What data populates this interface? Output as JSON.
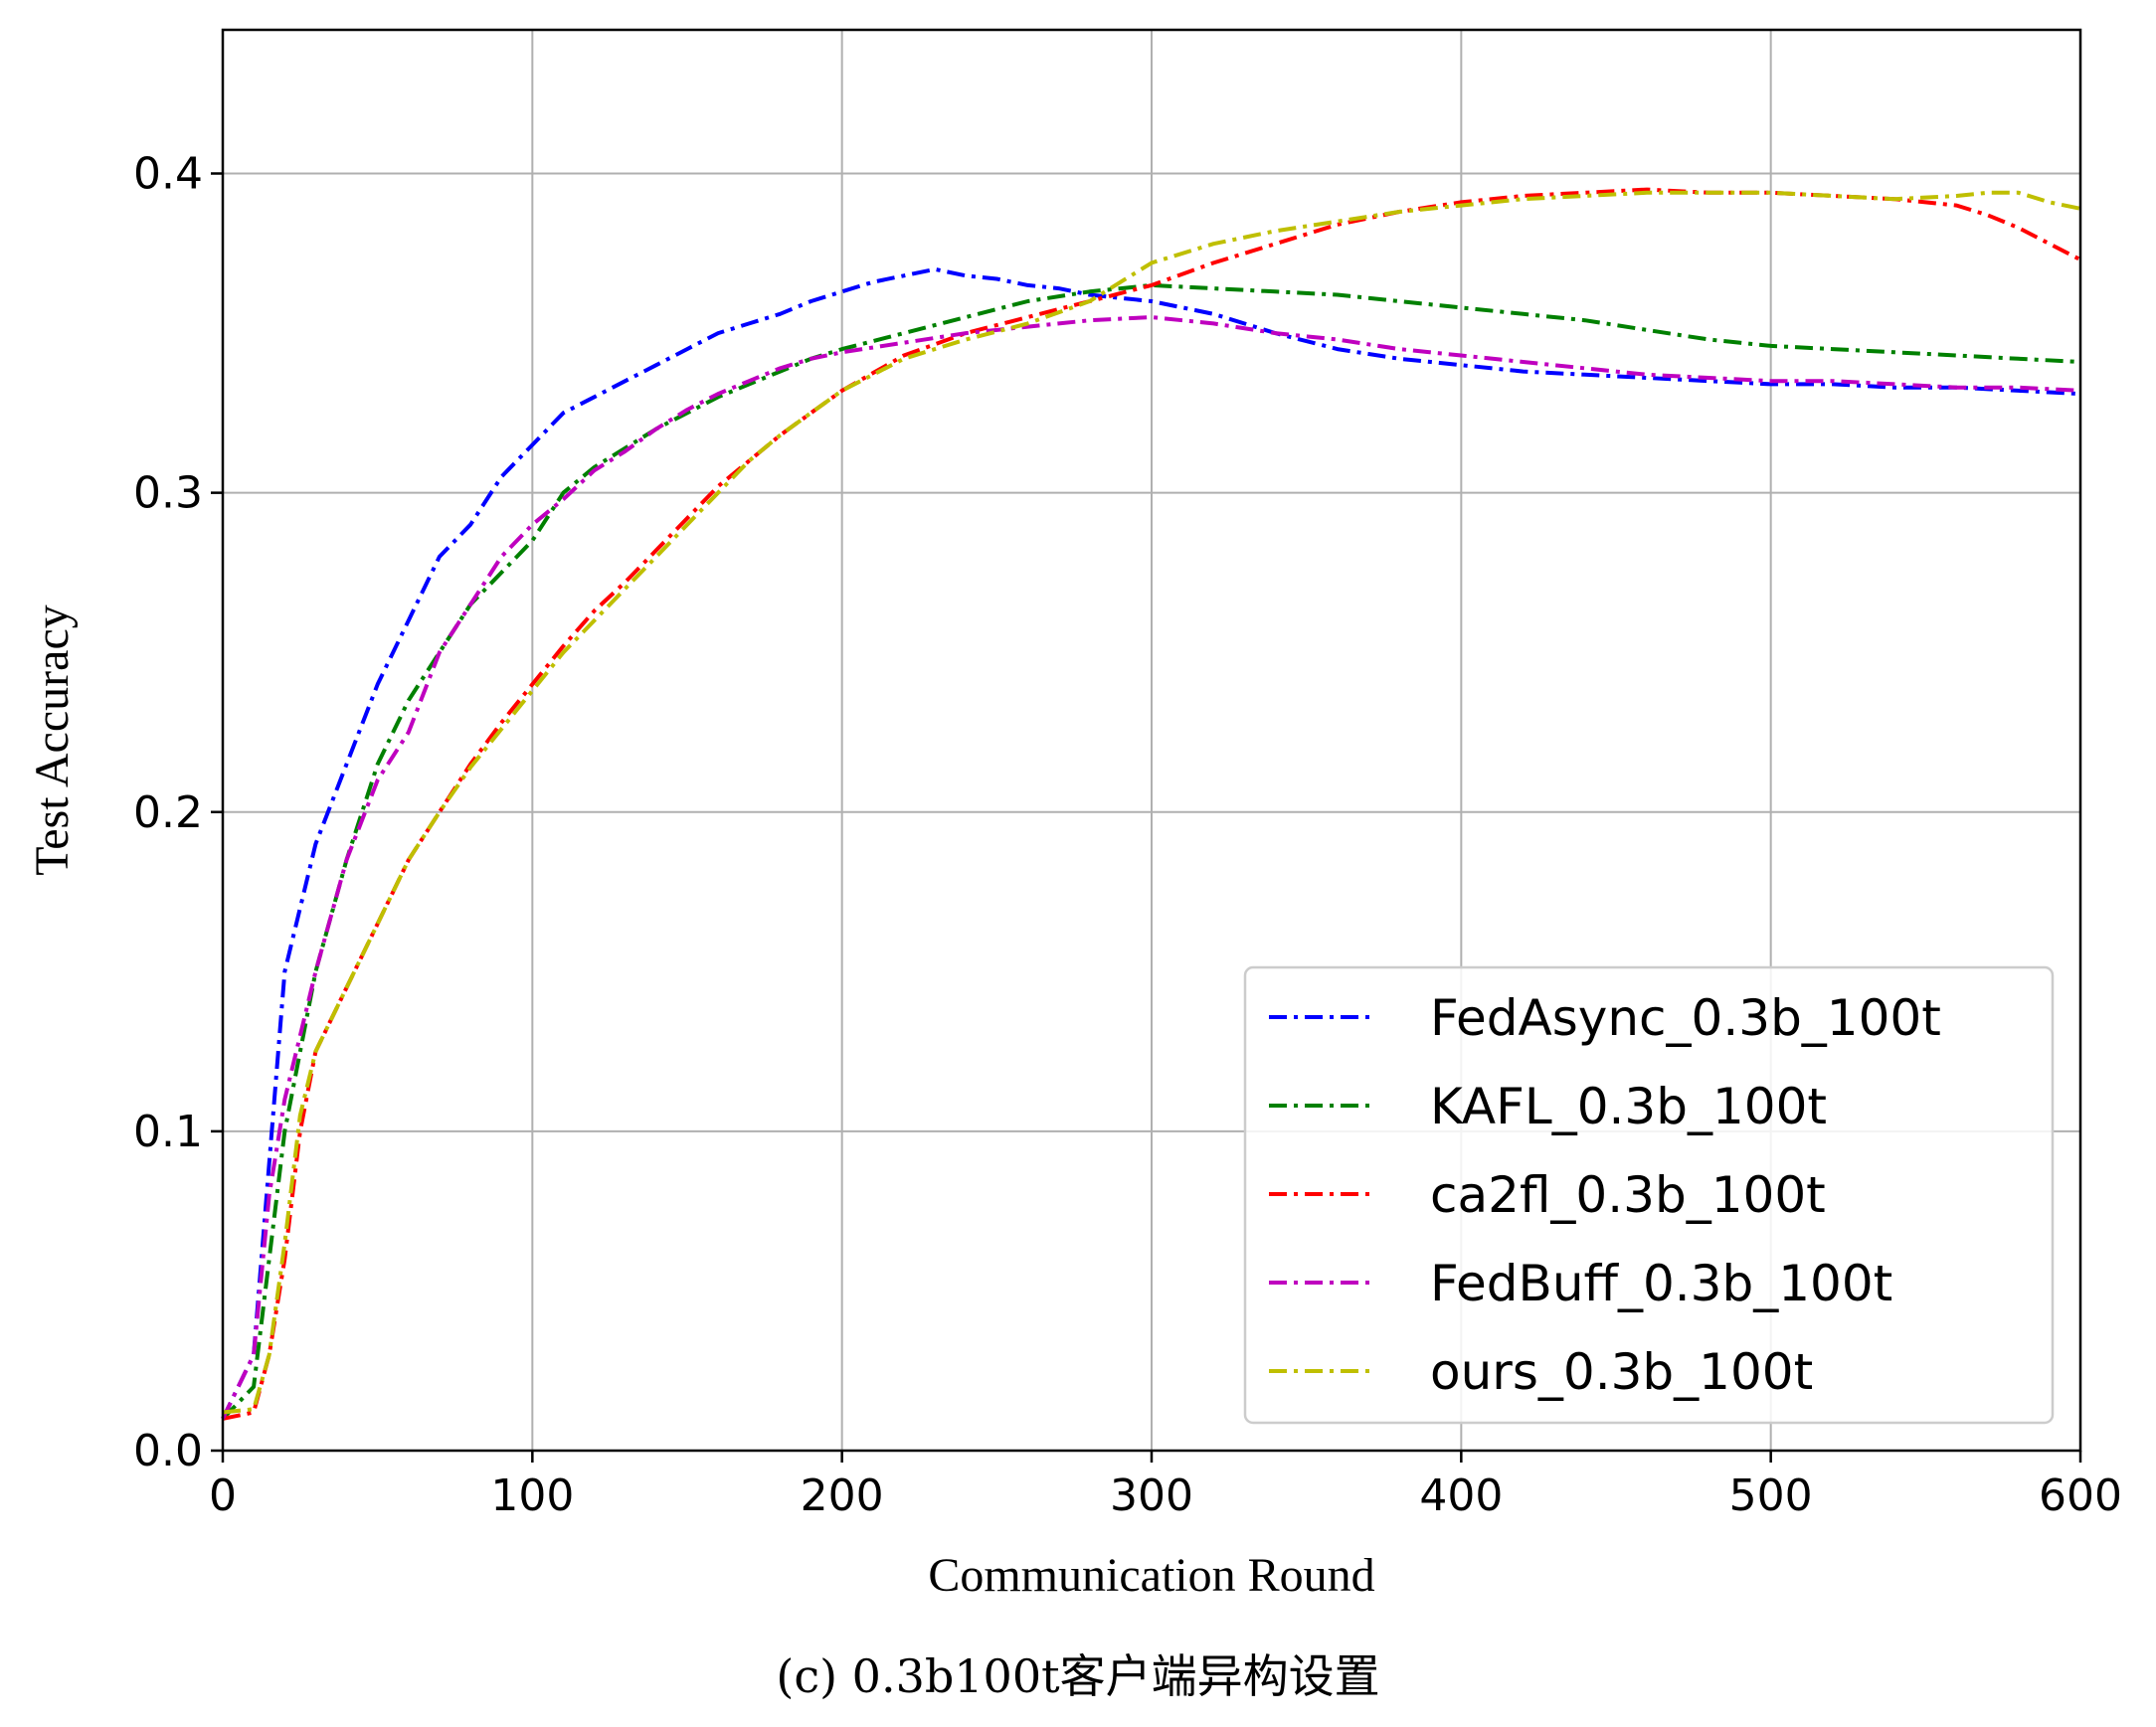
{
  "chart_data": {
    "type": "line",
    "xlabel": "Communication Round",
    "ylabel": "Test Accuracy",
    "xlim": [
      0,
      600
    ],
    "ylim": [
      0,
      0.445
    ],
    "xticks": [
      0,
      100,
      200,
      300,
      400,
      500,
      600
    ],
    "xtick_labels": [
      "0",
      "100",
      "200",
      "300",
      "400",
      "500",
      "600"
    ],
    "yticks": [
      0.0,
      0.1,
      0.2,
      0.3,
      0.4
    ],
    "ytick_labels": [
      "0.0",
      "0.1",
      "0.2",
      "0.3",
      "0.4"
    ],
    "grid": true,
    "legend_position": "lower-right",
    "series": [
      {
        "name": "FedAsync_0.3b_100t",
        "color": "#0000ff",
        "x": [
          0,
          10,
          15,
          20,
          30,
          40,
          50,
          60,
          70,
          80,
          90,
          100,
          110,
          120,
          130,
          140,
          150,
          160,
          170,
          180,
          190,
          200,
          210,
          220,
          230,
          240,
          250,
          260,
          270,
          280,
          300,
          320,
          340,
          360,
          380,
          400,
          420,
          440,
          460,
          480,
          500,
          520,
          540,
          560,
          580,
          600
        ],
        "y": [
          0.01,
          0.03,
          0.09,
          0.15,
          0.19,
          0.215,
          0.24,
          0.26,
          0.28,
          0.29,
          0.305,
          0.315,
          0.325,
          0.33,
          0.335,
          0.34,
          0.345,
          0.35,
          0.353,
          0.356,
          0.36,
          0.363,
          0.366,
          0.368,
          0.37,
          0.368,
          0.367,
          0.365,
          0.364,
          0.362,
          0.36,
          0.356,
          0.35,
          0.345,
          0.342,
          0.34,
          0.338,
          0.337,
          0.336,
          0.335,
          0.334,
          0.334,
          0.333,
          0.333,
          0.332,
          0.331
        ]
      },
      {
        "name": "KAFL_0.3b_100t",
        "color": "#008000",
        "x": [
          0,
          10,
          15,
          20,
          30,
          40,
          50,
          60,
          70,
          80,
          90,
          100,
          110,
          120,
          130,
          140,
          150,
          160,
          170,
          180,
          190,
          200,
          220,
          240,
          260,
          280,
          300,
          320,
          340,
          360,
          380,
          400,
          420,
          440,
          460,
          480,
          500,
          520,
          540,
          560,
          580,
          600
        ],
        "y": [
          0.01,
          0.02,
          0.06,
          0.1,
          0.15,
          0.185,
          0.215,
          0.235,
          0.25,
          0.265,
          0.275,
          0.285,
          0.3,
          0.308,
          0.314,
          0.32,
          0.325,
          0.33,
          0.334,
          0.338,
          0.342,
          0.345,
          0.35,
          0.355,
          0.36,
          0.363,
          0.365,
          0.364,
          0.363,
          0.362,
          0.36,
          0.358,
          0.356,
          0.354,
          0.351,
          0.348,
          0.346,
          0.345,
          0.344,
          0.343,
          0.342,
          0.341
        ]
      },
      {
        "name": "ca2fl_0.3b_100t",
        "color": "#ff0000",
        "x": [
          0,
          10,
          15,
          20,
          25,
          30,
          40,
          50,
          60,
          70,
          80,
          90,
          100,
          110,
          120,
          130,
          140,
          150,
          160,
          170,
          180,
          190,
          200,
          220,
          240,
          260,
          280,
          300,
          320,
          340,
          360,
          380,
          400,
          420,
          440,
          460,
          480,
          500,
          520,
          540,
          560,
          570,
          580,
          590,
          600
        ],
        "y": [
          0.01,
          0.012,
          0.03,
          0.06,
          0.1,
          0.125,
          0.145,
          0.165,
          0.185,
          0.2,
          0.215,
          0.228,
          0.24,
          0.252,
          0.263,
          0.272,
          0.282,
          0.292,
          0.302,
          0.31,
          0.318,
          0.325,
          0.332,
          0.343,
          0.35,
          0.355,
          0.36,
          0.365,
          0.372,
          0.378,
          0.384,
          0.388,
          0.391,
          0.393,
          0.394,
          0.395,
          0.394,
          0.394,
          0.393,
          0.392,
          0.39,
          0.387,
          0.383,
          0.378,
          0.373
        ]
      },
      {
        "name": "FedBuff_0.3b_100t",
        "color": "#bf00bf",
        "x": [
          0,
          10,
          15,
          20,
          30,
          40,
          50,
          60,
          70,
          80,
          90,
          100,
          110,
          120,
          130,
          140,
          150,
          160,
          170,
          180,
          190,
          200,
          220,
          240,
          260,
          280,
          300,
          320,
          340,
          360,
          380,
          400,
          420,
          440,
          460,
          480,
          500,
          520,
          540,
          560,
          580,
          600
        ],
        "y": [
          0.01,
          0.03,
          0.08,
          0.11,
          0.15,
          0.185,
          0.21,
          0.225,
          0.25,
          0.265,
          0.28,
          0.29,
          0.298,
          0.307,
          0.313,
          0.32,
          0.326,
          0.331,
          0.335,
          0.339,
          0.342,
          0.344,
          0.347,
          0.35,
          0.352,
          0.354,
          0.355,
          0.353,
          0.35,
          0.348,
          0.345,
          0.343,
          0.341,
          0.339,
          0.337,
          0.336,
          0.335,
          0.335,
          0.334,
          0.333,
          0.333,
          0.332
        ]
      },
      {
        "name": "ours_0.3b_100t",
        "color": "#bfbf00",
        "x": [
          0,
          10,
          15,
          20,
          25,
          30,
          40,
          50,
          60,
          70,
          80,
          90,
          100,
          110,
          120,
          130,
          140,
          150,
          160,
          170,
          180,
          190,
          200,
          220,
          240,
          260,
          280,
          300,
          320,
          340,
          360,
          380,
          400,
          420,
          440,
          460,
          480,
          500,
          520,
          540,
          560,
          570,
          580,
          590,
          600
        ],
        "y": [
          0.012,
          0.013,
          0.03,
          0.065,
          0.105,
          0.125,
          0.145,
          0.165,
          0.185,
          0.2,
          0.214,
          0.226,
          0.238,
          0.25,
          0.26,
          0.27,
          0.28,
          0.29,
          0.3,
          0.31,
          0.318,
          0.325,
          0.332,
          0.342,
          0.348,
          0.353,
          0.36,
          0.372,
          0.378,
          0.382,
          0.385,
          0.388,
          0.39,
          0.392,
          0.393,
          0.394,
          0.394,
          0.394,
          0.393,
          0.392,
          0.393,
          0.394,
          0.394,
          0.391,
          0.389
        ]
      }
    ]
  },
  "caption": "(c) 0.3b100t客户端异构设置"
}
